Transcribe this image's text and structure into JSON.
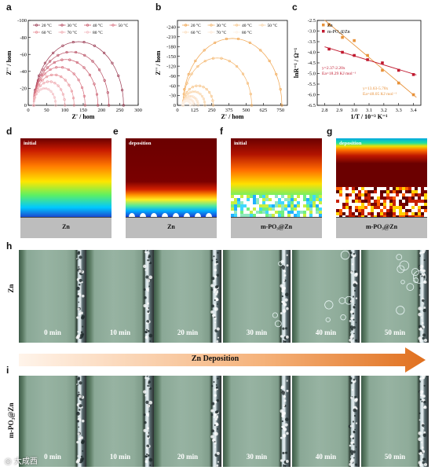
{
  "panels": {
    "a": "a",
    "b": "b",
    "c": "c",
    "d": "d",
    "e": "e",
    "f": "f",
    "g": "g",
    "h": "h",
    "i": "i"
  },
  "chart_data": [
    {
      "id": "a",
      "type": "scatter",
      "xlabel": "Z' / hom",
      "ylabel": "Z'' / hom",
      "xlim": [
        0,
        300
      ],
      "ylim": [
        0,
        -100
      ],
      "xticks": [
        0,
        50,
        100,
        150,
        200,
        250,
        300
      ],
      "yticks": [
        0,
        -20,
        -40,
        -60,
        -80,
        -100
      ],
      "legend": [
        "20 °C",
        "30 °C",
        "40 °C",
        "50 °C",
        "60 °C",
        "70 °C",
        "80 °C"
      ],
      "series": [
        {
          "name": "20 °C",
          "color": "#9a3a52",
          "diameter": 245,
          "peak": 75
        },
        {
          "name": "30 °C",
          "color": "#b5485e",
          "diameter": 205,
          "peak": 63
        },
        {
          "name": "40 °C",
          "color": "#c95a6c",
          "diameter": 175,
          "peak": 54
        },
        {
          "name": "50 °C",
          "color": "#d86f7e",
          "diameter": 140,
          "peak": 45
        },
        {
          "name": "60 °C",
          "color": "#e78e96",
          "diameter": 110,
          "peak": 36
        },
        {
          "name": "70 °C",
          "color": "#eea6ad",
          "diameter": 85,
          "peak": 28
        },
        {
          "name": "80 °C",
          "color": "#f3bdc2",
          "diameter": 60,
          "peak": 20
        }
      ]
    },
    {
      "id": "b",
      "type": "scatter",
      "xlabel": "Z' / hom",
      "ylabel": "Z'' / hom",
      "xlim": [
        0,
        800
      ],
      "ylim": [
        0,
        -260
      ],
      "xticks": [
        0,
        125,
        250,
        375,
        500,
        625,
        750
      ],
      "yticks": [
        0,
        -30,
        -60,
        -90,
        -120,
        -150,
        -180,
        -210,
        -240
      ],
      "legend": [
        "20 °C",
        "30 °C",
        "40 °C",
        "50 °C",
        "60 °C",
        "70 °C",
        "80 °C"
      ],
      "series": [
        {
          "name": "20 °C",
          "color": "#f0a24a",
          "diameter": 720,
          "peak": 205
        },
        {
          "name": "30 °C",
          "color": "#f4b56b",
          "diameter": 500,
          "peak": 145
        },
        {
          "name": "40 °C",
          "color": "#f7c58a",
          "diameter": 220,
          "peak": 60
        },
        {
          "name": "50 °C",
          "color": "#f9d3a6",
          "diameter": 160,
          "peak": 42
        },
        {
          "name": "60 °C",
          "color": "#fbdec0",
          "diameter": 110,
          "peak": 28
        },
        {
          "name": "70 °C",
          "color": "#fde8d5",
          "diameter": 80,
          "peak": 20
        },
        {
          "name": "80 °C",
          "color": "#fef0e4",
          "diameter": 55,
          "peak": 14
        }
      ]
    },
    {
      "id": "c",
      "type": "scatter",
      "xlabel": "1/T / 10⁻³ K⁻¹",
      "ylabel": "lnR⁻¹ / Ω⁻¹",
      "xlim": [
        2.75,
        3.45
      ],
      "ylim": [
        -6.5,
        -2.5
      ],
      "xticks": [
        2.8,
        2.9,
        3.0,
        3.1,
        3.2,
        3.3,
        3.4
      ],
      "yticks": [
        -6.5,
        -6.0,
        -5.5,
        -5.0,
        -4.5,
        -4.0,
        -3.5,
        -3.0,
        -2.5
      ],
      "legend": [
        "Zn",
        "m-PO₃@Zn"
      ],
      "series": [
        {
          "name": "Zn",
          "color": "#e8923a",
          "x": [
            2.83,
            2.92,
            3.0,
            3.09,
            3.19,
            3.3,
            3.4
          ],
          "y": [
            -2.7,
            -3.3,
            -3.45,
            -4.15,
            -4.85,
            -5.45,
            -6.0
          ]
        },
        {
          "name": "m-PO₃@Zn",
          "color": "#c0182e",
          "x": [
            2.83,
            2.92,
            3.0,
            3.09,
            3.19,
            3.3,
            3.4
          ],
          "y": [
            -3.85,
            -4.0,
            -4.15,
            -4.35,
            -4.5,
            -4.85,
            -5.05
          ]
        }
      ],
      "annotations": [
        {
          "text": "y=2.37-2.20x",
          "color": "#c0182e"
        },
        {
          "text": "Ea=18.29 KJ mol⁻¹",
          "color": "#c0182e"
        },
        {
          "text": "y=13.63-5.78x",
          "color": "#e8923a"
        },
        {
          "text": "Ea=48.05 KJ mol⁻¹",
          "color": "#e8923a"
        }
      ]
    }
  ],
  "sims": [
    {
      "panel": "d",
      "tag": "initial",
      "substrate": "Zn"
    },
    {
      "panel": "e",
      "tag": "deposition",
      "substrate": "Zn"
    },
    {
      "panel": "f",
      "tag": "initial",
      "substrate": "m-PO₃@Zn"
    },
    {
      "panel": "g",
      "tag": "deposition",
      "substrate": "m-PO₃@Zn"
    }
  ],
  "arrow_label": "Zn Deposition",
  "row_h_label": "Zn",
  "row_i_label": "m-PO₃@Zn",
  "times": [
    "0 min",
    "10 min",
    "20 min",
    "30 min",
    "40 min",
    "50 min"
  ],
  "watermark": "大成西"
}
